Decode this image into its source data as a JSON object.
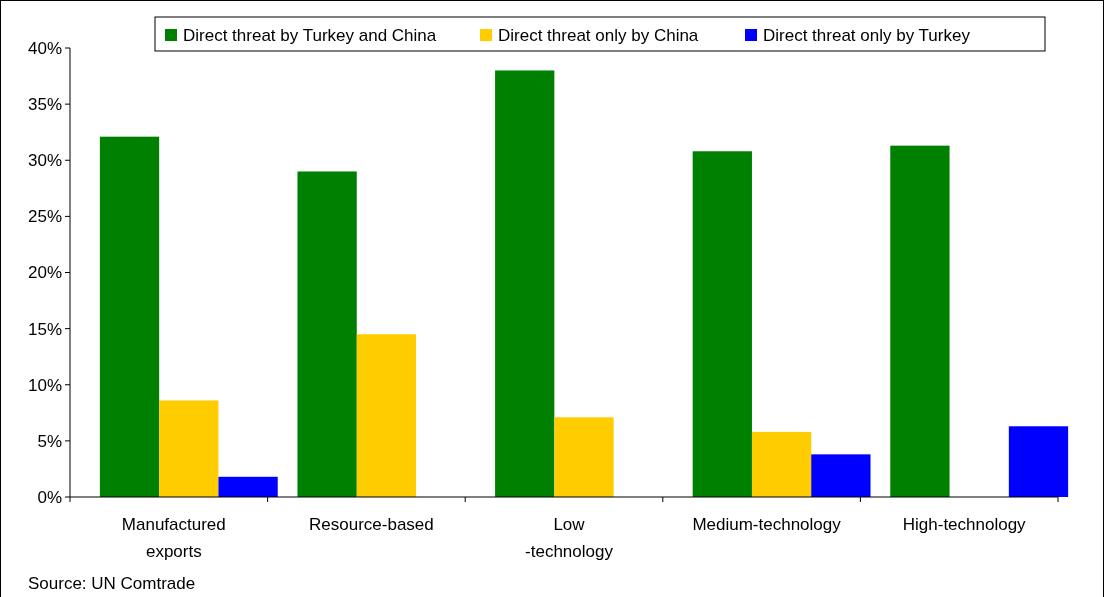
{
  "chart_data": {
    "type": "bar",
    "categories": [
      "Manufactured exports",
      "Resource-based",
      "Low -technology",
      "Medium-technology",
      "High-technology"
    ],
    "series": [
      {
        "name": "Direct threat by Turkey and China",
        "color": "#008000",
        "values": [
          32.1,
          29.0,
          38.0,
          30.8,
          31.3
        ]
      },
      {
        "name": "Direct threat only by China",
        "color": "#ffcc00",
        "values": [
          8.6,
          14.5,
          7.1,
          5.8,
          null
        ]
      },
      {
        "name": "Direct threat only by Turkey",
        "color": "#0000ff",
        "values": [
          1.8,
          null,
          null,
          3.8,
          6.3
        ]
      }
    ],
    "ylim": [
      0,
      40
    ],
    "yticks": [
      {
        "value": 0,
        "label": "0%"
      },
      {
        "value": 5,
        "label": "5%"
      },
      {
        "value": 10,
        "label": "10%"
      },
      {
        "value": 15,
        "label": "15%"
      },
      {
        "value": 20,
        "label": "20%"
      },
      {
        "value": 25,
        "label": "25%"
      },
      {
        "value": 30,
        "label": "30%"
      },
      {
        "value": 35,
        "label": "35%"
      },
      {
        "value": 40,
        "label": "40%"
      }
    ],
    "grid": false,
    "legend": "top",
    "annotations": [
      "Source: UN Comtrade"
    ]
  }
}
